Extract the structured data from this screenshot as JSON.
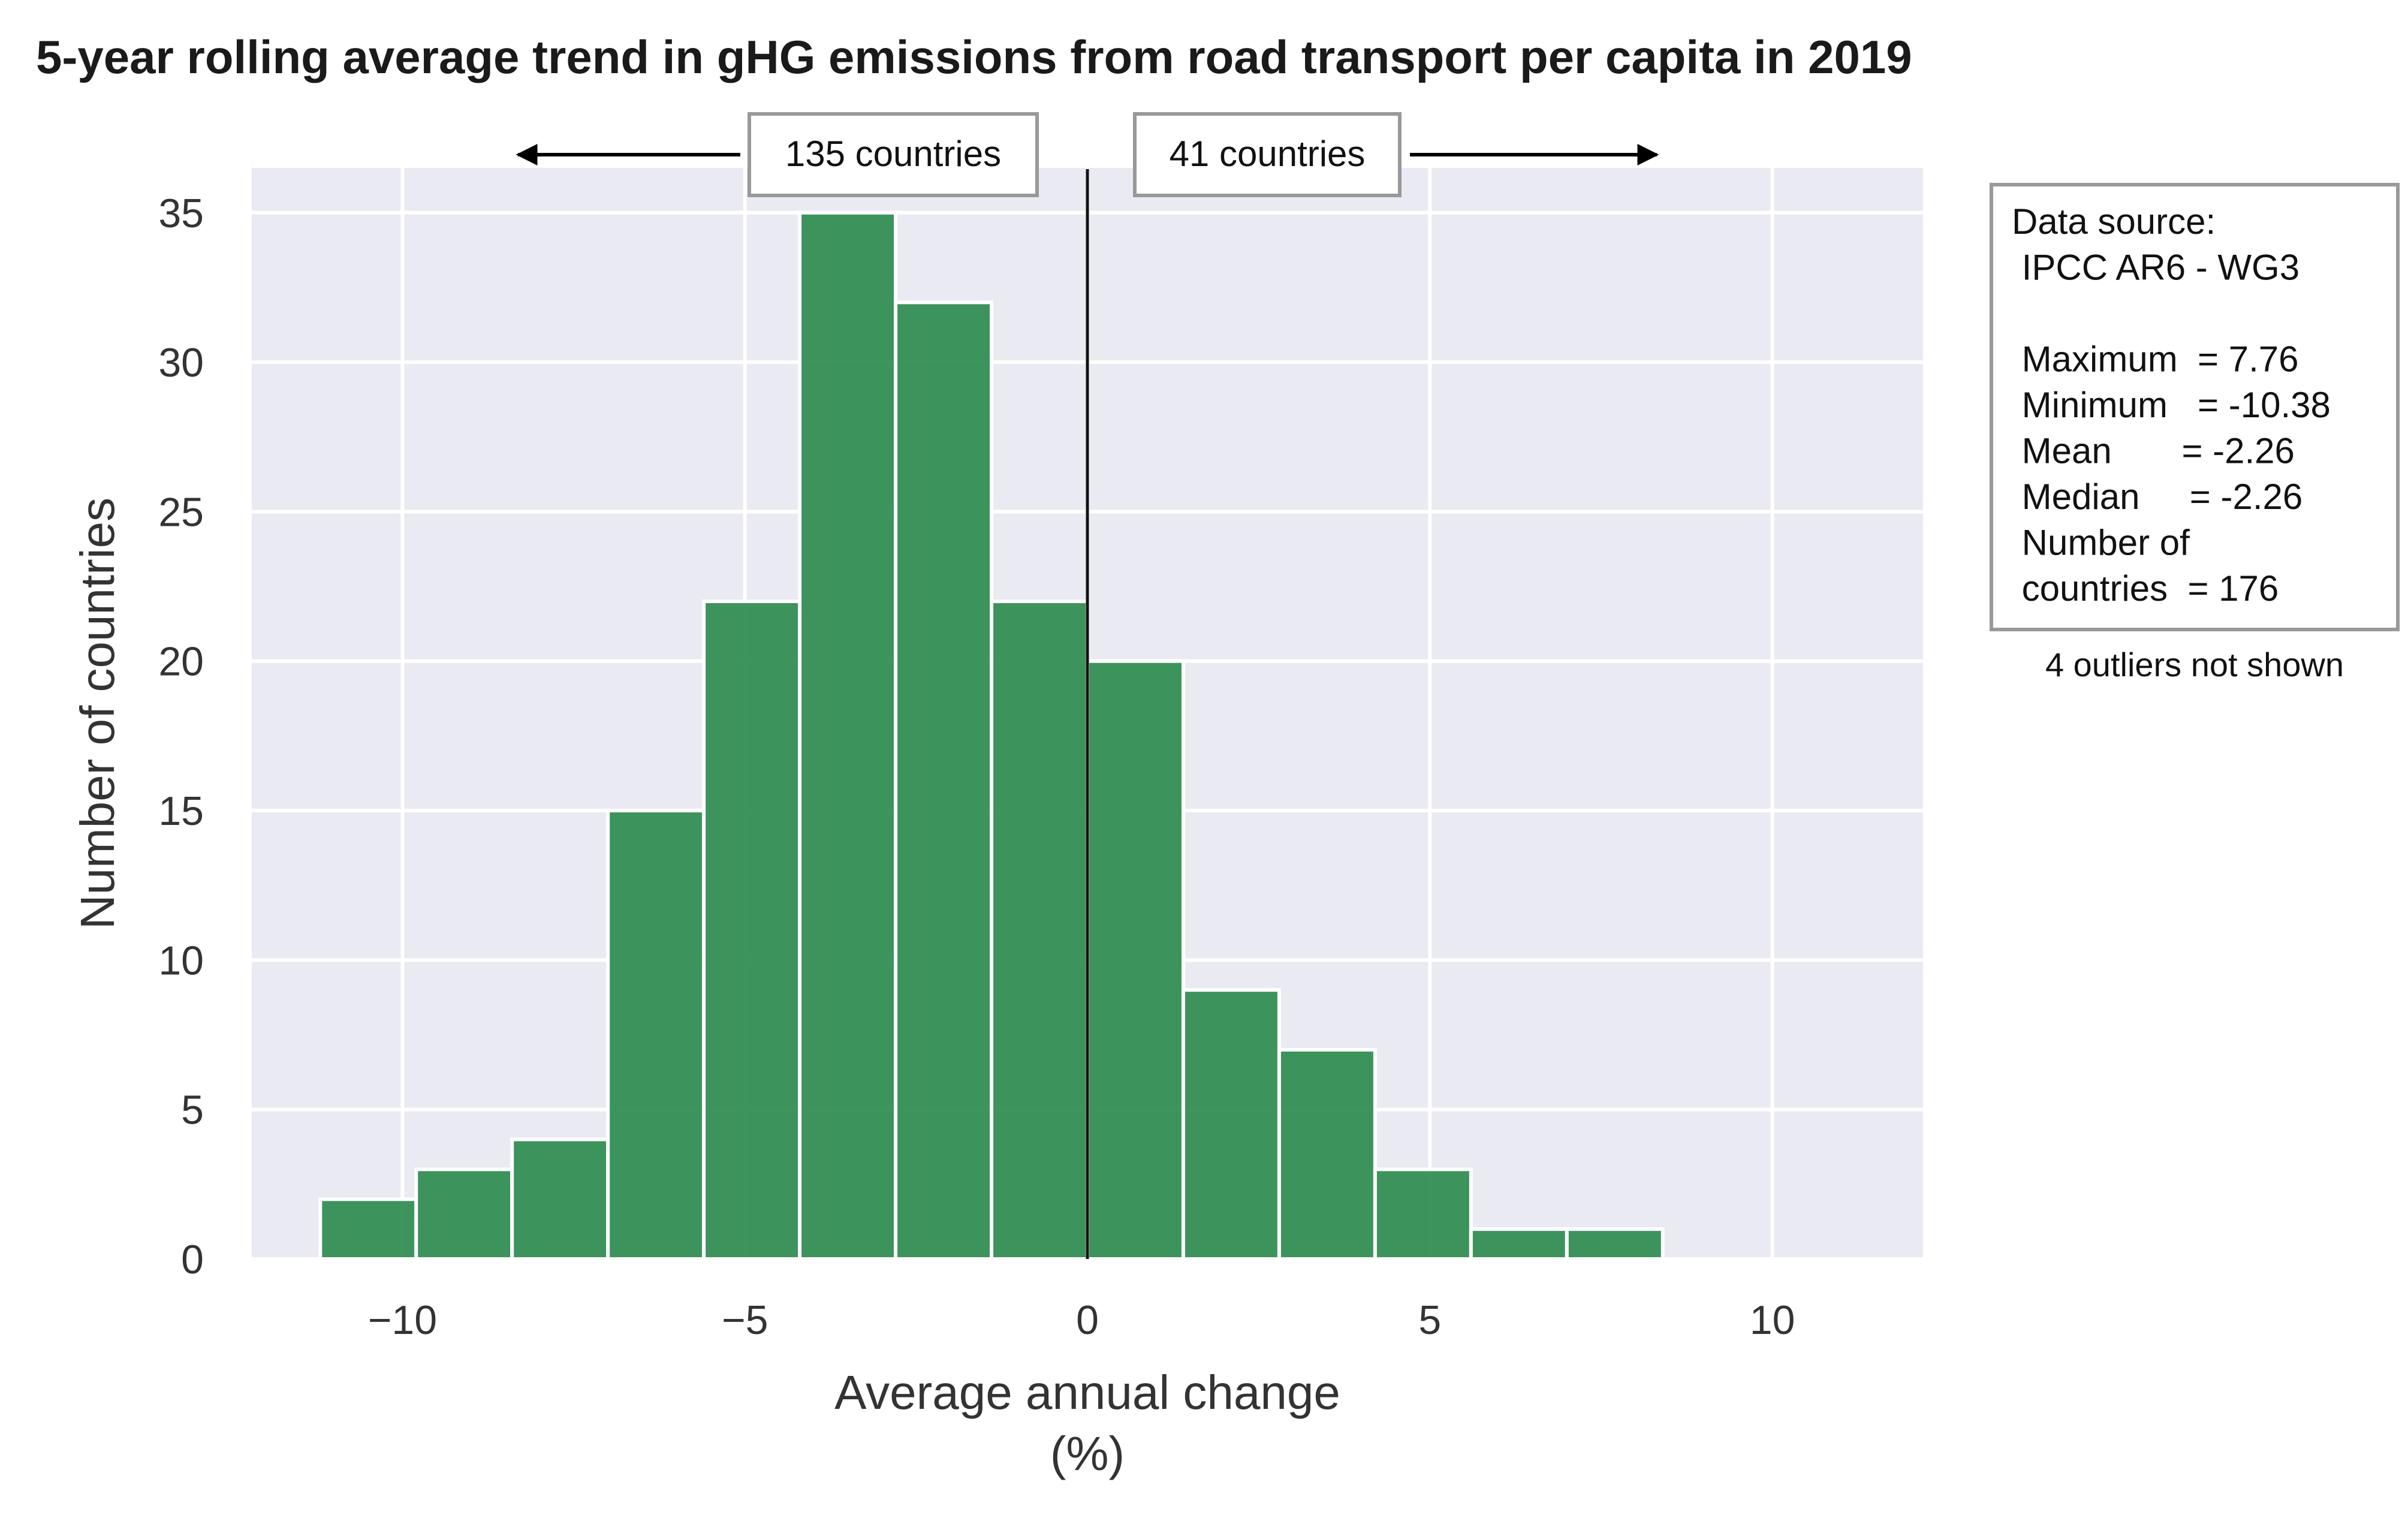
{
  "chart_data": {
    "type": "bar",
    "title": "5-year rolling average trend in gHG emissions from road transport per capita in 2019",
    "xlabel": "Average annual change",
    "xlabel_unit": "(%)",
    "ylabel": "Number of countries",
    "xlim": [
      -12.2,
      12.2
    ],
    "ylim": [
      0,
      36.5
    ],
    "xticks": [
      -10,
      -5,
      0,
      5,
      10
    ],
    "xtick_labels": [
      "−10",
      "−5",
      "0",
      "5",
      "10"
    ],
    "yticks": [
      0,
      5,
      10,
      15,
      20,
      25,
      30,
      35
    ],
    "ytick_labels": [
      "0",
      "5",
      "10",
      "15",
      "20",
      "25",
      "30",
      "35"
    ],
    "grid": true,
    "bar_color": "#2e8b4f",
    "plot_background": "#eaeaf2",
    "bins": [
      {
        "x0": -11.2,
        "x1": -9.8,
        "count": 2
      },
      {
        "x0": -9.8,
        "x1": -8.4,
        "count": 3
      },
      {
        "x0": -8.4,
        "x1": -7.0,
        "count": 4
      },
      {
        "x0": -7.0,
        "x1": -5.6,
        "count": 15
      },
      {
        "x0": -5.6,
        "x1": -4.2,
        "count": 22
      },
      {
        "x0": -4.2,
        "x1": -2.8,
        "count": 35
      },
      {
        "x0": -2.8,
        "x1": -1.4,
        "count": 32
      },
      {
        "x0": -1.4,
        "x1": 0.0,
        "count": 22
      },
      {
        "x0": 0.0,
        "x1": 1.4,
        "count": 20
      },
      {
        "x0": 1.4,
        "x1": 2.8,
        "count": 9
      },
      {
        "x0": 2.8,
        "x1": 4.2,
        "count": 7
      },
      {
        "x0": 4.2,
        "x1": 5.6,
        "count": 3
      },
      {
        "x0": 5.6,
        "x1": 7.0,
        "count": 1
      },
      {
        "x0": 7.0,
        "x1": 8.4,
        "count": 1
      }
    ],
    "reference_line_x": 0,
    "annotations": {
      "left": {
        "label": "135 countries",
        "arrow_to_x": -8.4
      },
      "right": {
        "label": "41 countries",
        "arrow_to_x": 8.4
      }
    },
    "info_box": [
      "Data source:",
      " IPCC AR6 - WG3",
      "",
      " Maximum  = 7.76",
      " Minimum   = -10.38",
      " Mean       = -2.26",
      " Median     = -2.26",
      " Number of",
      " countries  = 176"
    ],
    "note": "4 outliers not shown"
  }
}
